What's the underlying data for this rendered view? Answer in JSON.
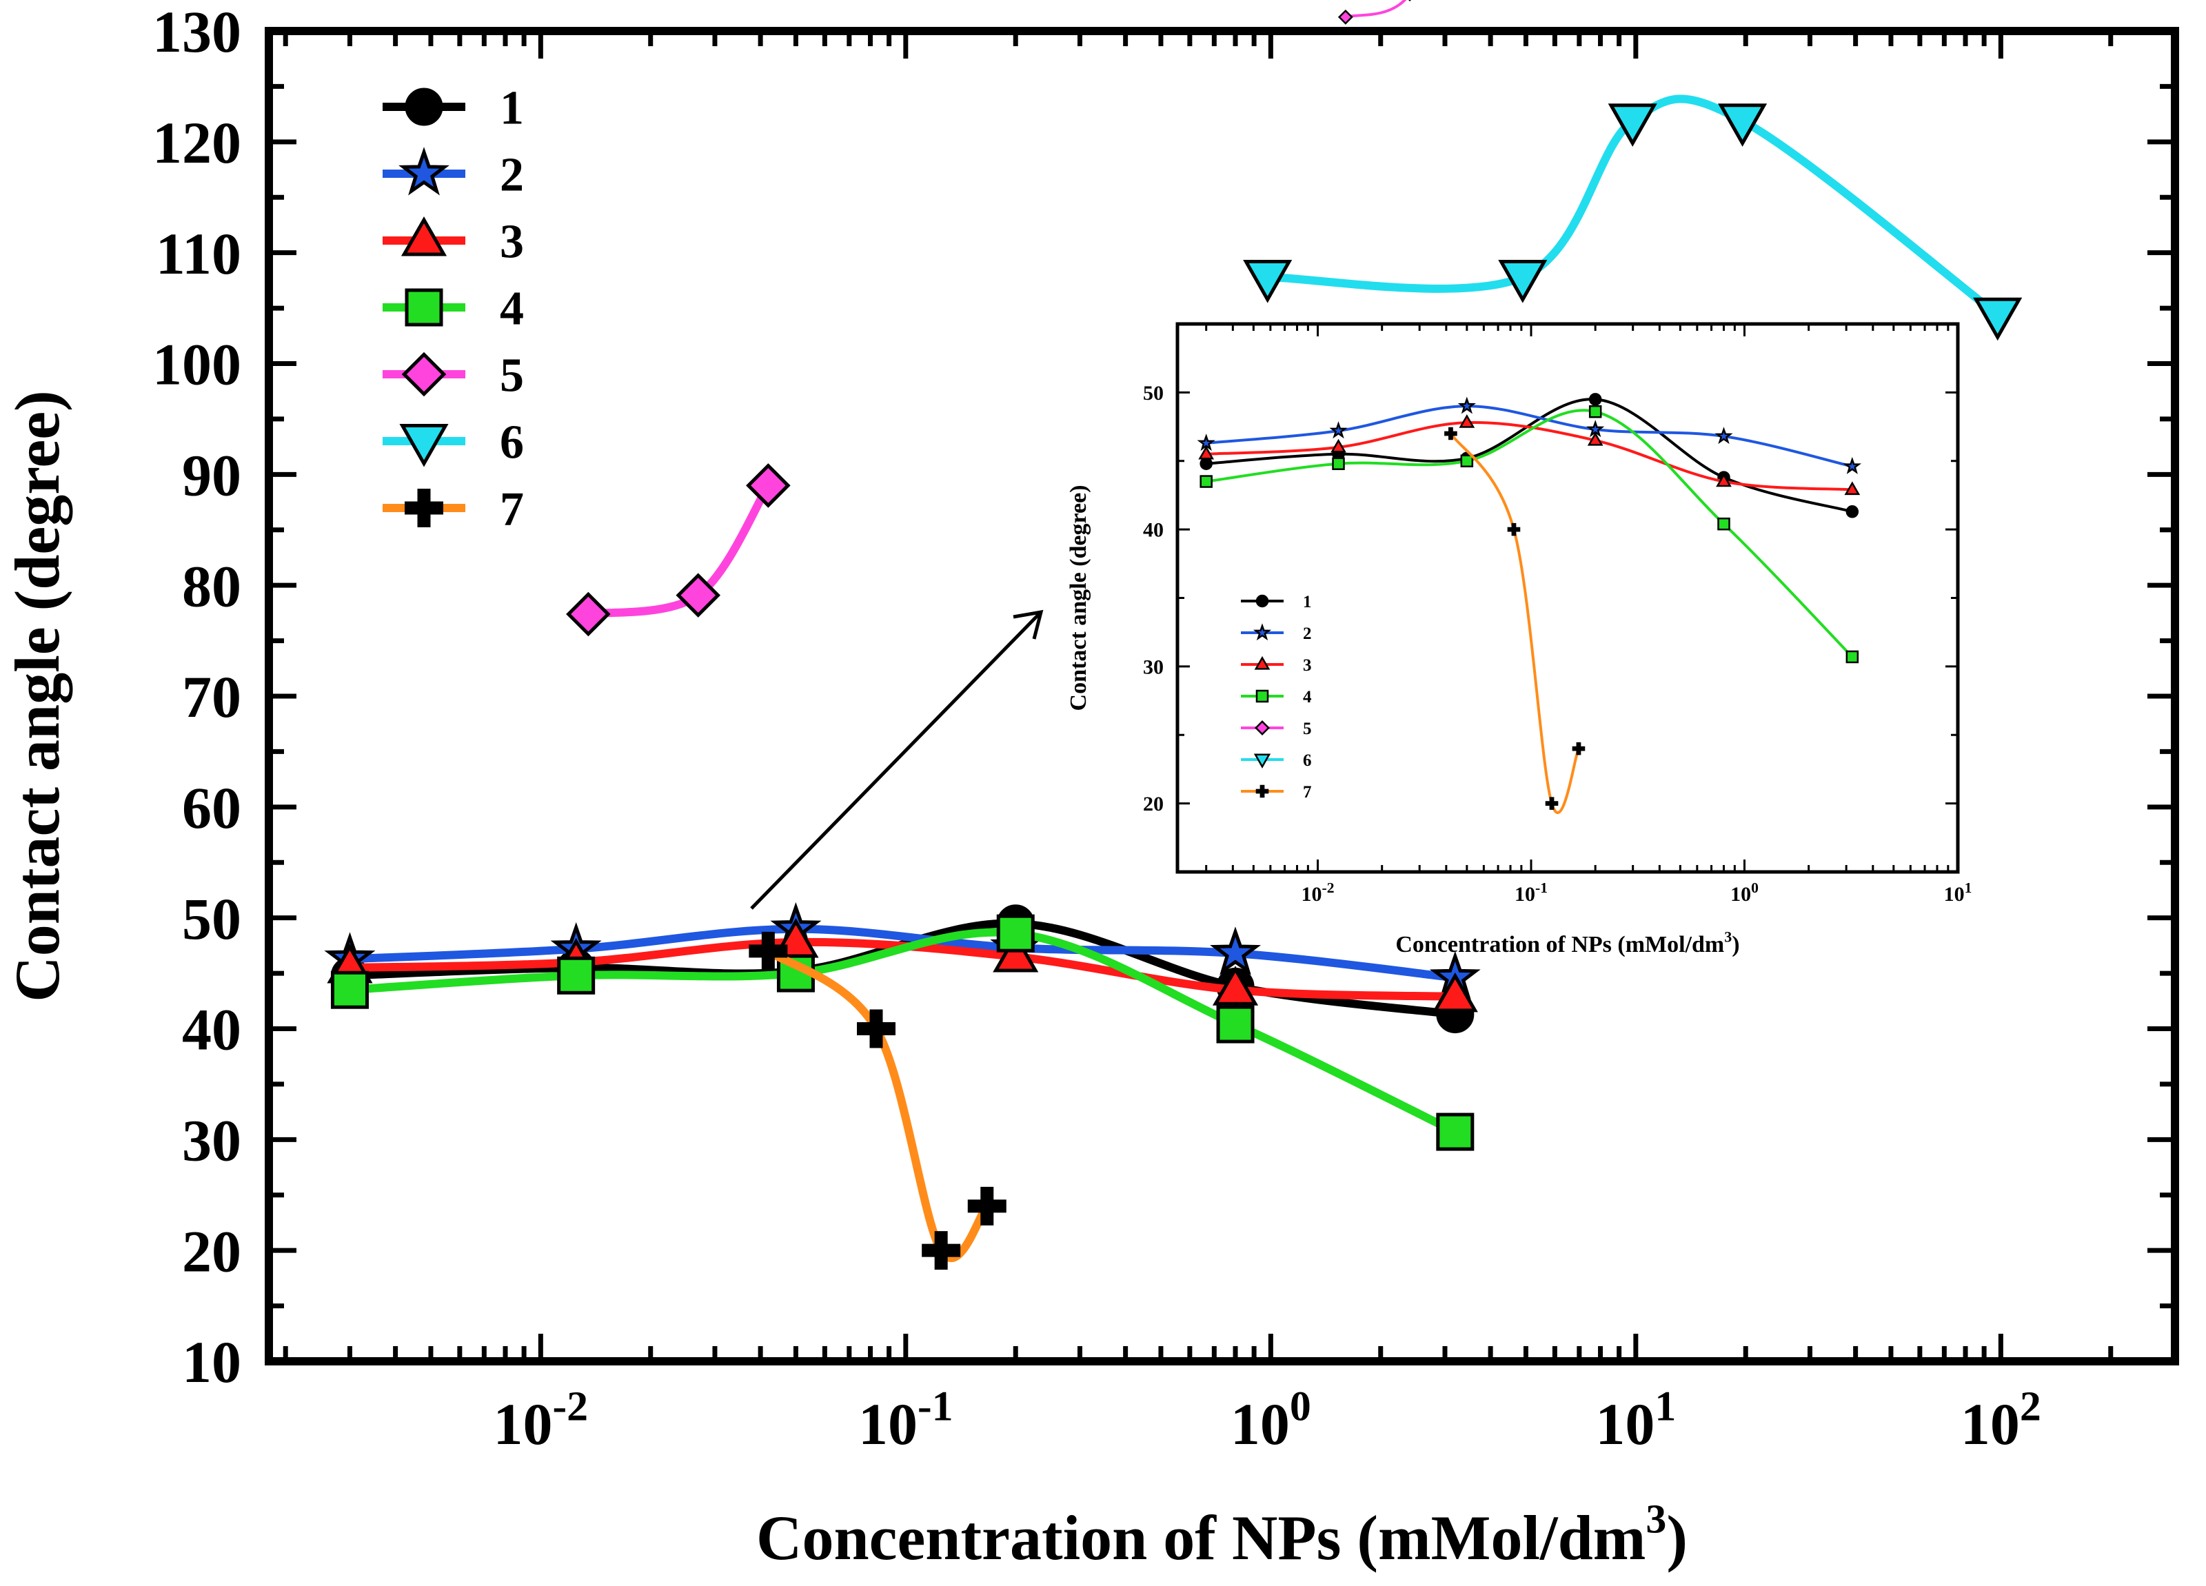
{
  "chart_data": [
    {
      "type": "line",
      "ylabel": "Contact angle (degree)",
      "xlabel_main": "Concentration of NPs (mMol/dm",
      "xlabel_sup": "3",
      "xlabel_close": ")",
      "xscale": "log",
      "xlim": [
        0.0018,
        300
      ],
      "ylim": [
        10,
        130
      ],
      "yticks": [
        10,
        20,
        30,
        40,
        50,
        60,
        70,
        80,
        90,
        100,
        110,
        120,
        130
      ],
      "xticks": [
        {
          "value": 0.01,
          "base": "10",
          "exp": "-2"
        },
        {
          "value": 0.1,
          "base": "10",
          "exp": "-1"
        },
        {
          "value": 1,
          "base": "10",
          "exp": "0"
        },
        {
          "value": 10,
          "base": "10",
          "exp": "1"
        },
        {
          "value": 100,
          "base": "10",
          "exp": "2"
        }
      ],
      "legend_position": "top-left",
      "series": [
        {
          "name": "1",
          "color": "#000000",
          "marker": "circle",
          "x": [
            0.003,
            0.0125,
            0.05,
            0.2,
            0.8,
            3.2
          ],
          "y": [
            44.8,
            45.5,
            45.2,
            49.5,
            43.8,
            41.3
          ]
        },
        {
          "name": "2",
          "color": "#1f57e0",
          "marker": "star",
          "x": [
            0.003,
            0.0125,
            0.05,
            0.2,
            0.8,
            3.2
          ],
          "y": [
            46.3,
            47.2,
            49.0,
            47.3,
            46.8,
            44.6
          ]
        },
        {
          "name": "3",
          "color": "#ff1a1a",
          "marker": "triangle-up",
          "x": [
            0.003,
            0.0125,
            0.05,
            0.2,
            0.8,
            3.2
          ],
          "y": [
            45.5,
            46.0,
            47.8,
            46.5,
            43.5,
            42.9
          ]
        },
        {
          "name": "4",
          "color": "#22dd22",
          "marker": "square",
          "x": [
            0.003,
            0.0125,
            0.05,
            0.2,
            0.8,
            3.2
          ],
          "y": [
            43.5,
            44.8,
            45.0,
            48.6,
            40.4,
            30.7
          ]
        },
        {
          "name": "5",
          "color": "#ff44dd",
          "marker": "diamond",
          "x": [
            0.0135,
            0.027,
            0.042
          ],
          "y": [
            77.4,
            79.1,
            89.0
          ]
        },
        {
          "name": "6",
          "color": "#22ddee",
          "marker": "triangle-down",
          "x": [
            0.98,
            4.9,
            9.8,
            19.6,
            98
          ],
          "y": [
            107.8,
            107.8,
            121.9,
            121.9,
            104.4
          ]
        },
        {
          "name": "7",
          "color": "#ff8c1a",
          "marker": "plus",
          "x": [
            0.042,
            0.083,
            0.125,
            0.167
          ],
          "y": [
            47.0,
            40.0,
            20.0,
            24.0
          ]
        }
      ]
    },
    {
      "type": "line",
      "inset": true,
      "ylabel": "Contact angle (degree)",
      "xlabel_main": "Concentration of NPs (mMol/dm",
      "xlabel_sup": "3",
      "xlabel_close": ")",
      "xscale": "log",
      "xlim": [
        0.0022,
        10
      ],
      "ylim": [
        15,
        55
      ],
      "yticks": [
        20,
        30,
        40,
        50
      ],
      "xticks": [
        {
          "value": 0.01,
          "base": "10",
          "exp": "-2"
        },
        {
          "value": 0.1,
          "base": "10",
          "exp": "-1"
        },
        {
          "value": 1,
          "base": "10",
          "exp": "0"
        },
        {
          "value": 10,
          "base": "10",
          "exp": "1"
        }
      ],
      "legend_position": "center-left",
      "series_ref": "same data as main chart, series 1-4 and 7 plotted"
    }
  ]
}
